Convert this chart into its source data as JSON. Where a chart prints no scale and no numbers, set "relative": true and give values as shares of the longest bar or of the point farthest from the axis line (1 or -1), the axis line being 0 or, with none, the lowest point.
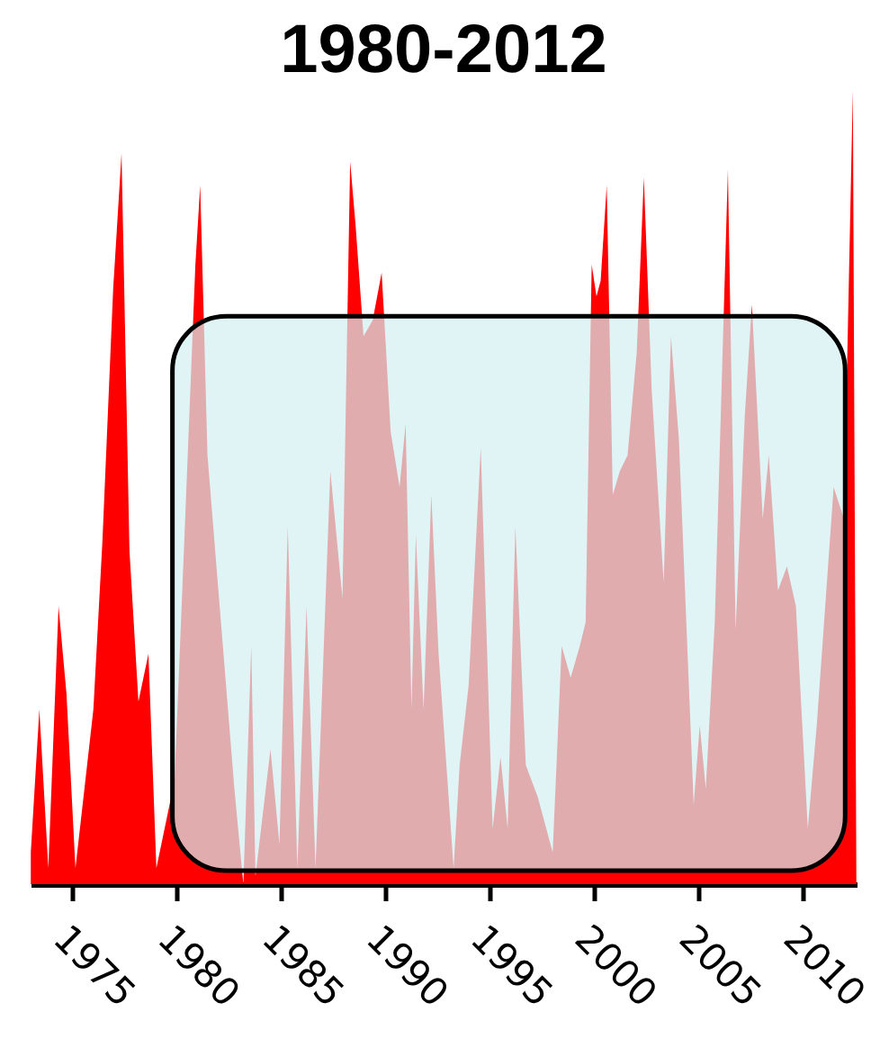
{
  "chart_data": {
    "type": "area",
    "title": "1980-2012",
    "relative": true,
    "grid": false,
    "xlim": [
      1973,
      2012.6
    ],
    "xticks": [
      1975,
      1980,
      1985,
      1990,
      1995,
      2000,
      2005,
      2010
    ],
    "x": [
      1973.01,
      1973.42,
      1973.85,
      1974.34,
      1974.72,
      1975.15,
      1975.58,
      1976.01,
      1976.44,
      1976.96,
      1977.36,
      1977.74,
      1978.17,
      1978.65,
      1979.03,
      1979.9,
      1980.38,
      1980.9,
      1981.13,
      1981.48,
      1982.77,
      1983.2,
      1983.58,
      1983.78,
      1984.5,
      1984.93,
      1985.33,
      1985.79,
      1986.23,
      1986.66,
      1987.37,
      1987.95,
      1988.32,
      1988.58,
      1988.96,
      1989.4,
      1989.83,
      1990.26,
      1990.69,
      1990.98,
      1991.26,
      1991.47,
      1991.84,
      1992.21,
      1992.56,
      1993.28,
      1993.57,
      1994,
      1994.58,
      1995.15,
      1995.53,
      1995.87,
      1996.24,
      1996.74,
      1997.31,
      1998.03,
      1998.46,
      1998.89,
      1999.33,
      1999.61,
      1999.9,
      2000.13,
      2000.33,
      2000.62,
      2000.91,
      2001.25,
      2001.62,
      2002.06,
      2002.4,
      2002.78,
      2003.35,
      2003.7,
      2004.08,
      2004.79,
      2005.08,
      2005.37,
      2005.8,
      2006.43,
      2006.8,
      2007.24,
      2007.58,
      2008.1,
      2008.39,
      2008.83,
      2009.26,
      2009.69,
      2010.26,
      2010.69,
      2011.5,
      2011.99,
      2012.42,
      2012.59
    ],
    "series": [
      {
        "color": "#ff0000",
        "values": [
          0.04,
          0.22,
          0.02,
          0.35,
          0.24,
          0.02,
          0.12,
          0.22,
          0.43,
          0.75,
          0.92,
          0.42,
          0.23,
          0.29,
          0.02,
          0.13,
          0.44,
          0.78,
          0.88,
          0.54,
          0.12,
          0,
          0.3,
          0.01,
          0.17,
          0.05,
          0.45,
          0.02,
          0.35,
          0.02,
          0.52,
          0.36,
          0.91,
          0.83,
          0.69,
          0.71,
          0.77,
          0.57,
          0.5,
          0.58,
          0.22,
          0.44,
          0.22,
          0.49,
          0.29,
          0.02,
          0.15,
          0.25,
          0.55,
          0.07,
          0.16,
          0.07,
          0.45,
          0.15,
          0.11,
          0.04,
          0.3,
          0.26,
          0.3,
          0.33,
          0.78,
          0.74,
          0.76,
          0.88,
          0.49,
          0.52,
          0.54,
          0.67,
          0.89,
          0.62,
          0.38,
          0.69,
          0.56,
          0.1,
          0.2,
          0.12,
          0.33,
          0.9,
          0.32,
          0.59,
          0.73,
          0.46,
          0.54,
          0.37,
          0.4,
          0.35,
          0.07,
          0.2,
          0.5,
          0.46,
          1,
          0
        ]
      }
    ],
    "bands": [
      {
        "axis": "x",
        "from": 1979.8,
        "to": 2012.05,
        "color": "#d4eef1"
      }
    ]
  }
}
